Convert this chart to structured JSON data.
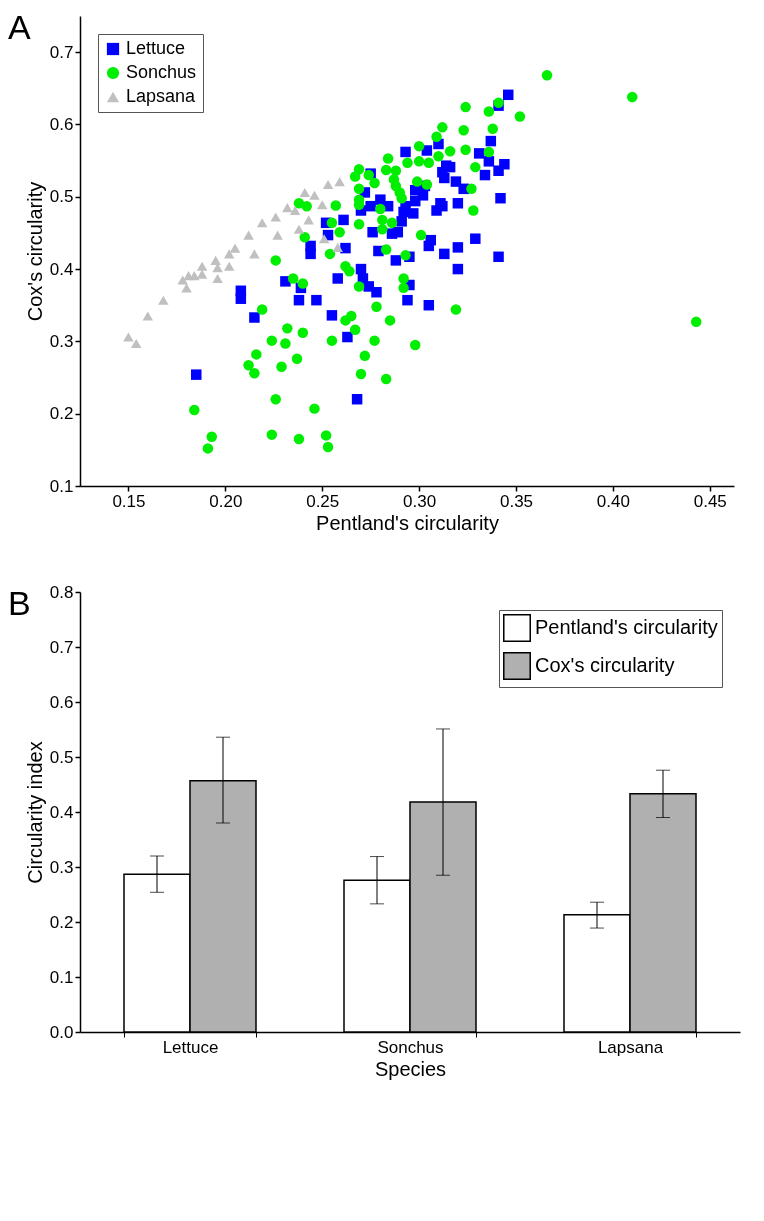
{
  "chart_data": [
    {
      "type": "scatter",
      "xlabel": "Pentland's circularity",
      "ylabel": "Cox's circularity",
      "annotations": [
        "A"
      ],
      "xlim": [
        0.125,
        0.4625
      ],
      "xticks": [
        0.15,
        {
          "value": 0.2,
          "label": "0.20"
        },
        0.25,
        {
          "value": 0.3,
          "label": "0.30"
        },
        0.35,
        {
          "value": 0.4,
          "label": "0.40"
        },
        0.45
      ],
      "ylim": [
        0.1,
        0.75
      ],
      "yticks": [
        0.1,
        0.2,
        0.3,
        0.4,
        0.5,
        0.6,
        0.7
      ],
      "grid": false,
      "legend": "top left",
      "series": [
        {
          "name": "Lettuce",
          "color": "#0000ff",
          "marker": "square",
          "x": [
            0.346,
            0.341,
            0.337,
            0.331,
            0.336,
            0.344,
            0.341,
            0.334,
            0.342,
            0.293,
            0.304,
            0.31,
            0.314,
            0.316,
            0.312,
            0.313,
            0.319,
            0.323,
            0.32,
            0.311,
            0.309,
            0.312,
            0.303,
            0.298,
            0.302,
            0.298,
            0.293,
            0.292,
            0.297,
            0.291,
            0.284,
            0.28,
            0.275,
            0.27,
            0.275,
            0.272,
            0.289,
            0.286,
            0.281,
            0.276,
            0.329,
            0.306,
            0.305,
            0.32,
            0.313,
            0.32,
            0.341,
            0.279,
            0.288,
            0.295,
            0.27,
            0.258,
            0.271,
            0.274,
            0.278,
            0.295,
            0.261,
            0.252,
            0.253,
            0.262,
            0.244,
            0.244,
            0.231,
            0.239,
            0.238,
            0.247,
            0.255,
            0.208,
            0.208,
            0.215,
            0.294,
            0.305,
            0.263,
            0.185,
            0.268
          ],
          "values": [
            0.641,
            0.626,
            0.577,
            0.56,
            0.549,
            0.545,
            0.536,
            0.53,
            0.498,
            0.562,
            0.564,
            0.573,
            0.543,
            0.541,
            0.534,
            0.526,
            0.521,
            0.511,
            0.491,
            0.491,
            0.481,
            0.487,
            0.515,
            0.509,
            0.502,
            0.494,
            0.487,
            0.479,
            0.477,
            0.466,
            0.487,
            0.496,
            0.487,
            0.481,
            0.532,
            0.506,
            0.451,
            0.449,
            null,
            0.451,
            0.442,
            0.44,
            0.432,
            0.43,
            0.421,
            0.4,
            0.417,
            0.425,
            0.412,
            0.417,
            0.4,
            0.387,
            0.387,
            0.376,
            0.368,
            0.378,
            0.468,
            0.464,
            0.447,
            0.429,
            0.421,
            0.432,
            0.383,
            0.374,
            0.357,
            0.357,
            0.336,
            0.37,
            0.359,
            0.333,
            0.357,
            0.35,
            0.306,
            0.254,
            0.22
          ]
        },
        {
          "name": "Sonchus",
          "color": "#00ee00",
          "marker": "circle",
          "x": [
            0.366,
            0.341,
            0.336,
            0.324,
            0.352,
            0.312,
            0.309,
            0.323,
            0.338,
            0.3,
            0.316,
            0.324,
            0.336,
            0.31,
            0.305,
            0.3,
            0.294,
            0.284,
            0.283,
            0.288,
            0.269,
            0.267,
            0.274,
            0.277,
            0.269,
            0.287,
            0.288,
            0.29,
            0.291,
            0.299,
            0.304,
            0.329,
            0.327,
            0.328,
            0.269,
            0.269,
            0.28,
            0.281,
            0.286,
            0.281,
            0.269,
            0.257,
            0.255,
            0.259,
            0.242,
            0.238,
            0.241,
            0.301,
            0.283,
            0.293,
            0.254,
            0.226,
            0.262,
            0.264,
            0.292,
            0.292,
            0.269,
            0.235,
            0.24,
            0.319,
            0.278,
            0.285,
            0.219,
            0.262,
            0.265,
            0.232,
            0.24,
            0.267,
            0.224,
            0.255,
            0.277,
            0.184,
            0.193,
            0.191,
            0.212,
            0.215,
            0.216,
            0.226,
            0.229,
            0.224,
            0.231,
            0.237,
            0.238,
            0.246,
            0.252,
            0.253,
            0.27,
            0.283,
            0.298,
            0.272,
            0.41,
            0.443
          ],
          "values": [
            0.668,
            0.63,
            0.618,
            0.624,
            0.611,
            0.596,
            0.583,
            0.592,
            0.594,
            0.57,
            0.563,
            0.565,
            0.562,
            0.556,
            0.547,
            0.549,
            0.547,
            0.553,
            0.537,
            0.536,
            0.538,
            0.528,
            0.53,
            0.519,
            0.511,
            0.524,
            0.515,
            0.506,
            0.498,
            0.521,
            0.517,
            0.541,
            0.511,
            0.481,
            0.496,
            0.489,
            0.483,
            0.468,
            0.464,
            0.455,
            0.462,
            0.488,
            0.464,
            0.451,
            0.487,
            0.491,
            0.444,
            0.447,
            0.427,
            0.419,
            0.421,
            0.412,
            0.404,
            0.397,
            0.387,
            0.374,
            0.376,
            0.387,
            0.38,
            0.344,
            0.348,
            0.329,
            0.344,
            0.329,
            0.335,
            0.318,
            0.312,
            0.316,
            0.301,
            0.301,
            0.301,
            0.205,
            0.168,
            0.152,
            0.267,
            0.256,
            0.282,
            0.22,
            0.265,
            0.171,
            0.297,
            0.276,
            0.165,
            0.207,
            0.17,
            0.154,
            0.255,
            0.248,
            0.295,
            0.28,
            0.638,
            0.327
          ]
        },
        {
          "name": "Lapsana",
          "color": "#c0c0c0",
          "marker": "triangle",
          "x": [
            0.259,
            0.253,
            0.241,
            0.246,
            0.25,
            0.243,
            0.238,
            0.251,
            0.258,
            0.232,
            0.226,
            0.219,
            0.212,
            0.205,
            0.202,
            0.215,
            0.227,
            0.236,
            0.195,
            0.188,
            0.181,
            0.15,
            0.154,
            0.16,
            0.168,
            0.178,
            0.18,
            0.184,
            0.188,
            0.196,
            0.196,
            0.202
          ],
          "values": [
            0.521,
            0.517,
            0.506,
            0.502,
            0.489,
            0.468,
            0.455,
            0.442,
            0.43,
            0.485,
            0.472,
            0.464,
            0.447,
            0.429,
            0.421,
            0.421,
            0.447,
            0.481,
            0.412,
            0.404,
            0.391,
            0.306,
            0.297,
            0.335,
            0.357,
            0.385,
            0.374,
            0.391,
            0.393,
            0.387,
            0.402,
            0.404
          ]
        }
      ]
    },
    {
      "type": "bar",
      "xlabel": "Species",
      "ylabel": "Circularity index",
      "annotations": [
        "B"
      ],
      "categories": [
        "Lettuce",
        "Sonchus",
        "Lapsana"
      ],
      "ylim": [
        0,
        0.8
      ],
      "yticks": [
        {
          "value": 0,
          "label": "0.0"
        },
        0.1,
        0.2,
        0.3,
        0.4,
        0.5,
        0.6,
        0.7,
        0.8
      ],
      "grid": false,
      "legend": "top right",
      "series": [
        {
          "name": "Pentland's circularity",
          "color": "#ffffff",
          "values": [
            0.287,
            0.276,
            0.213
          ],
          "errors": [
            [
              0.254,
              0.32
            ],
            [
              0.233,
              0.319
            ],
            [
              0.189,
              0.236
            ]
          ]
        },
        {
          "name": "Cox's circularity",
          "color": "#b0b0b0",
          "values": [
            0.457,
            0.418,
            0.433
          ],
          "errors": [
            [
              0.38,
              0.536
            ],
            [
              0.285,
              0.551
            ],
            [
              0.39,
              0.476
            ]
          ]
        }
      ]
    }
  ]
}
